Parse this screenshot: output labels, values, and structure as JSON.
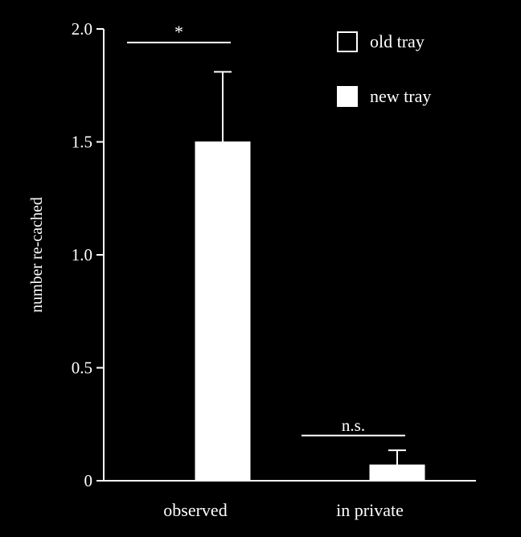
{
  "chart_data": {
    "type": "bar",
    "categories": [
      "observed",
      "in private"
    ],
    "series": [
      {
        "name": "old tray",
        "values": [
          0,
          0
        ],
        "errors": [
          0,
          0
        ],
        "fill": "#000000"
      },
      {
        "name": "new tray",
        "values": [
          1.5,
          0.07
        ],
        "errors": [
          0.31,
          0.065
        ],
        "fill": "#ffffff"
      }
    ],
    "ylabel": "number re-cached",
    "ylim": [
      0,
      2.0
    ],
    "yticks": [
      {
        "value": 0,
        "label": "0"
      },
      {
        "value": 0.5,
        "label": "0.5"
      },
      {
        "value": 1.0,
        "label": "1.0"
      },
      {
        "value": 1.5,
        "label": "1.5"
      },
      {
        "value": 2.0,
        "label": "2.0"
      }
    ],
    "significance": [
      {
        "category_index": 0,
        "label": "*",
        "y": 1.94
      },
      {
        "category_index": 1,
        "label": "n.s.",
        "y": 0.2
      }
    ],
    "legend_position": "top-right",
    "grid": false
  }
}
